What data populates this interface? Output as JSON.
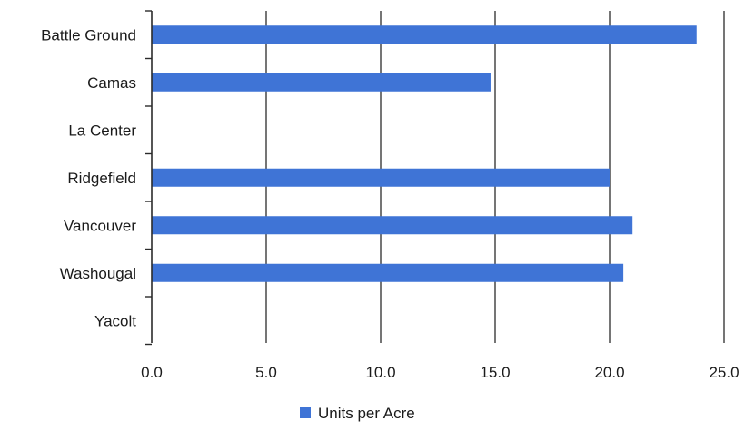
{
  "chart_data": {
    "type": "bar",
    "orientation": "horizontal",
    "categories": [
      "Battle Ground",
      "Camas",
      "La Center",
      "Ridgefield",
      "Vancouver",
      "Washougal",
      "Yacolt"
    ],
    "series": [
      {
        "name": "Units per Acre",
        "values": [
          23.8,
          14.8,
          0,
          20.0,
          21.0,
          20.6,
          0
        ],
        "color": "#3f74d6"
      }
    ],
    "title": "",
    "xlabel": "",
    "ylabel": "",
    "xlim": [
      0,
      25
    ],
    "ticks": [
      "0.0",
      "5.0",
      "10.0",
      "15.0",
      "20.0",
      "25.0"
    ],
    "grid": "vertical",
    "legend_position": "bottom"
  }
}
